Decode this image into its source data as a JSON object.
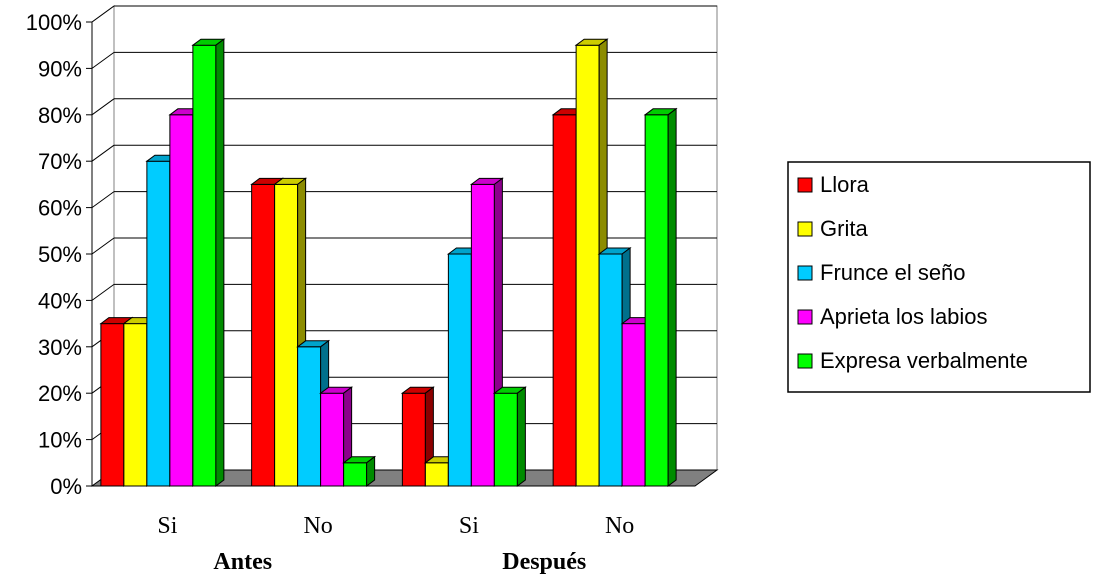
{
  "chart_data": {
    "type": "bar",
    "categories": [
      "Si",
      "No",
      "Si",
      "No"
    ],
    "groups": [
      {
        "label": "Antes",
        "categories": [
          "Si",
          "No"
        ]
      },
      {
        "label": "Después",
        "categories": [
          "Si",
          "No"
        ]
      }
    ],
    "series": [
      {
        "name": "Llora",
        "color": "#ff0000",
        "values": [
          35,
          65,
          20,
          80
        ]
      },
      {
        "name": "Grita",
        "color": "#ffff00",
        "values": [
          35,
          65,
          5,
          95
        ]
      },
      {
        "name": "Frunce el seño",
        "color": "#00ccff",
        "values": [
          70,
          30,
          50,
          50
        ]
      },
      {
        "name": "Aprieta los labios",
        "color": "#ff00ff",
        "values": [
          80,
          20,
          65,
          35
        ]
      },
      {
        "name": "Expresa verbalmente",
        "color": "#00ff00",
        "values": [
          95,
          5,
          20,
          80
        ]
      }
    ],
    "ylim": [
      0,
      100
    ],
    "yticks": [
      "0%",
      "10%",
      "20%",
      "30%",
      "40%",
      "50%",
      "60%",
      "70%",
      "80%",
      "90%",
      "100%"
    ],
    "grid": true,
    "legend_position": "right",
    "style": "3d-clustered-column"
  }
}
